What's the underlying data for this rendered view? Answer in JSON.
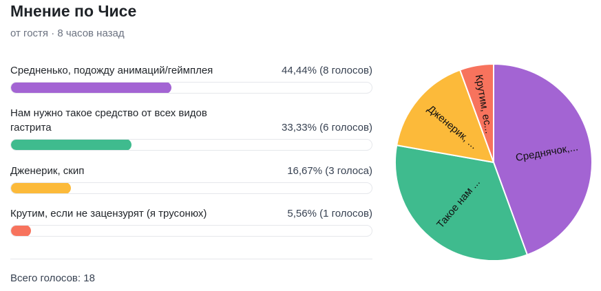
{
  "poll": {
    "title": "Мнение по Чисе",
    "meta": "от гостя · 8 часов назад",
    "total": "Всего голосов: 18"
  },
  "options": [
    {
      "label": "Средненько, подожду анимаций/геймплея",
      "result": "44,44% (8 голосов)",
      "percent": 44.44,
      "color": "#a364d3"
    },
    {
      "label": "Нам нужно такое средство от всех видов гастрита",
      "result": "33,33% (6 голосов)",
      "percent": 33.33,
      "color": "#3fbb8e"
    },
    {
      "label": "Дженерик, скип",
      "result": "16,67% (3 голоса)",
      "percent": 16.67,
      "color": "#fcba3a"
    },
    {
      "label": "Крутим, если не зацензурят (я трусонюх)",
      "result": "5,56% (1 голосов)",
      "percent": 5.56,
      "color": "#f7735d"
    }
  ],
  "chart_data": {
    "type": "pie",
    "slices": [
      {
        "label": "Среднячок,...",
        "value": 8,
        "color": "#a364d3"
      },
      {
        "label": "Такое нам ...",
        "value": 6,
        "color": "#3fbb8e"
      },
      {
        "label": "Дженерик, ...",
        "value": 3,
        "color": "#fcba3a"
      },
      {
        "label": "Крутим, ес...",
        "value": 1,
        "color": "#f7735d"
      }
    ]
  }
}
